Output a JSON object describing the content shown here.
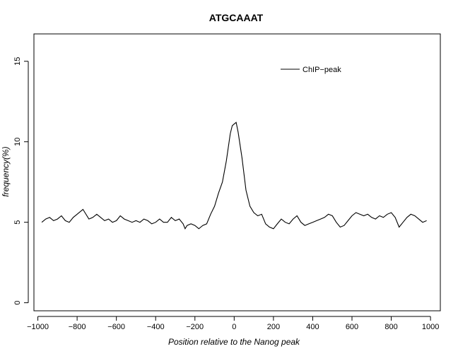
{
  "chart_data": {
    "type": "line",
    "title": "ATGCAAAT",
    "xlabel": "Position relative to the Nanog peak",
    "ylabel": "frequency(%)",
    "xlim": [
      -1020,
      1050
    ],
    "ylim": [
      -0.5,
      16.7
    ],
    "xticks": [
      -1000,
      -800,
      -600,
      -400,
      -200,
      0,
      200,
      400,
      600,
      800,
      1000
    ],
    "xtick_labels": [
      "−1000",
      "−800",
      "−600",
      "−400",
      "−200",
      "0",
      "200",
      "400",
      "600",
      "800",
      "1000"
    ],
    "yticks": [
      0,
      5,
      10,
      15
    ],
    "ytick_labels": [
      "0",
      "5",
      "10",
      "15"
    ],
    "legend": {
      "position": "top-right",
      "entries": [
        {
          "label": "ChIP−peak",
          "color": "#000000"
        }
      ]
    },
    "series": [
      {
        "name": "ChIP−peak",
        "color": "#000000",
        "x": [
          -980,
          -960,
          -940,
          -920,
          -900,
          -880,
          -860,
          -840,
          -820,
          -800,
          -780,
          -770,
          -760,
          -740,
          -720,
          -700,
          -680,
          -660,
          -640,
          -620,
          -600,
          -580,
          -560,
          -540,
          -520,
          -500,
          -480,
          -460,
          -440,
          -420,
          -400,
          -380,
          -360,
          -340,
          -320,
          -300,
          -280,
          -260,
          -250,
          -240,
          -220,
          -200,
          -180,
          -170,
          -160,
          -140,
          -120,
          -100,
          -80,
          -60,
          -40,
          -20,
          -10,
          0,
          10,
          20,
          40,
          60,
          80,
          100,
          120,
          140,
          160,
          180,
          200,
          220,
          240,
          260,
          280,
          300,
          320,
          340,
          360,
          380,
          400,
          420,
          440,
          460,
          480,
          500,
          520,
          540,
          560,
          580,
          600,
          620,
          640,
          660,
          680,
          700,
          720,
          740,
          760,
          780,
          800,
          820,
          840,
          860,
          880,
          900,
          920,
          940,
          960,
          980
        ],
        "y": [
          5.0,
          5.2,
          5.3,
          5.1,
          5.2,
          5.4,
          5.1,
          5.0,
          5.3,
          5.5,
          5.7,
          5.8,
          5.6,
          5.2,
          5.3,
          5.5,
          5.3,
          5.1,
          5.2,
          5.0,
          5.1,
          5.4,
          5.2,
          5.1,
          5.0,
          5.1,
          5.0,
          5.2,
          5.1,
          4.9,
          5.0,
          5.2,
          5.0,
          5.0,
          5.3,
          5.1,
          5.2,
          4.9,
          4.6,
          4.8,
          4.9,
          4.8,
          4.6,
          4.7,
          4.8,
          4.9,
          5.5,
          6.0,
          6.8,
          7.5,
          8.8,
          10.5,
          11.0,
          11.1,
          11.2,
          10.6,
          9.0,
          7.0,
          6.0,
          5.6,
          5.4,
          5.5,
          4.9,
          4.7,
          4.6,
          4.9,
          5.2,
          5.0,
          4.9,
          5.2,
          5.4,
          5.0,
          4.8,
          4.9,
          5.0,
          5.1,
          5.2,
          5.3,
          5.5,
          5.4,
          5.0,
          4.7,
          4.8,
          5.1,
          5.4,
          5.6,
          5.5,
          5.4,
          5.5,
          5.3,
          5.2,
          5.4,
          5.3,
          5.5,
          5.6,
          5.3,
          4.7,
          5.0,
          5.3,
          5.5,
          5.4,
          5.2,
          5.0,
          5.1
        ]
      }
    ]
  }
}
